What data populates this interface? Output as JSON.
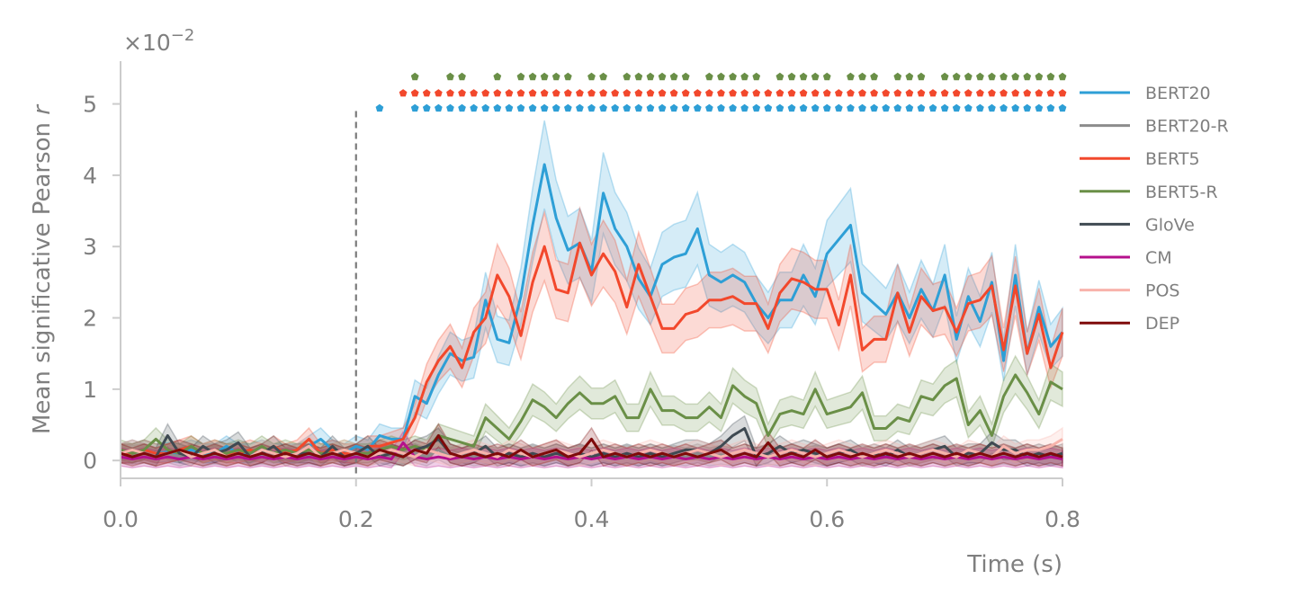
{
  "chart_data": {
    "type": "line",
    "xlabel": "Time (s)",
    "ylabel": "Mean significative Pearson",
    "ylabel_italic": "r",
    "multiplier_base": "×10",
    "multiplier_exp": "−2",
    "xlim": [
      0.0,
      0.8
    ],
    "ylim": [
      -0.25,
      5.6
    ],
    "x_ticks": [
      0.0,
      0.2,
      0.4,
      0.6,
      0.8
    ],
    "x_tick_labels": [
      "0.0",
      "0.2",
      "0.4",
      "0.6",
      "0.8"
    ],
    "y_ticks": [
      0,
      1,
      2,
      3,
      4,
      5
    ],
    "y_tick_labels": [
      "0",
      "1",
      "2",
      "3",
      "4",
      "5"
    ],
    "grid": false,
    "legend_position": "right",
    "vline": {
      "x": 0.2,
      "y_top": 4.9,
      "style": "dashed"
    },
    "x": [
      0.0,
      0.01,
      0.02,
      0.03,
      0.04,
      0.05,
      0.06,
      0.07,
      0.08,
      0.09,
      0.1,
      0.11,
      0.12,
      0.13,
      0.14,
      0.15,
      0.16,
      0.17,
      0.18,
      0.19,
      0.2,
      0.21,
      0.22,
      0.23,
      0.24,
      0.25,
      0.26,
      0.27,
      0.28,
      0.29,
      0.3,
      0.31,
      0.32,
      0.33,
      0.34,
      0.35,
      0.36,
      0.37,
      0.38,
      0.39,
      0.4,
      0.41,
      0.42,
      0.43,
      0.44,
      0.45,
      0.46,
      0.47,
      0.48,
      0.49,
      0.5,
      0.51,
      0.52,
      0.53,
      0.54,
      0.55,
      0.56,
      0.57,
      0.58,
      0.59,
      0.6,
      0.61,
      0.62,
      0.63,
      0.64,
      0.65,
      0.66,
      0.67,
      0.68,
      0.69,
      0.7,
      0.71,
      0.72,
      0.73,
      0.74,
      0.75,
      0.76,
      0.77,
      0.78,
      0.79,
      0.8
    ],
    "series": [
      {
        "name": "BERT20",
        "color": "#2e9fd6",
        "values": [
          0.1,
          0.1,
          0.15,
          0.1,
          0.12,
          0.1,
          0.15,
          0.1,
          0.1,
          0.2,
          0.1,
          0.1,
          0.15,
          0.1,
          0.1,
          0.1,
          0.2,
          0.3,
          0.15,
          0.1,
          0.2,
          0.15,
          0.35,
          0.3,
          0.3,
          0.9,
          0.8,
          1.2,
          1.5,
          1.4,
          1.45,
          2.25,
          1.7,
          1.65,
          2.3,
          3.3,
          4.15,
          3.4,
          2.95,
          3.05,
          2.65,
          3.75,
          3.25,
          3.0,
          2.55,
          2.3,
          2.75,
          2.85,
          2.9,
          3.25,
          2.6,
          2.5,
          2.6,
          2.5,
          2.2,
          2.0,
          2.25,
          2.25,
          2.6,
          2.3,
          2.9,
          3.1,
          3.3,
          2.35,
          2.2,
          2.05,
          2.35,
          2.0,
          2.4,
          2.1,
          2.6,
          1.7,
          2.3,
          1.95,
          2.5,
          1.4,
          2.6,
          1.5,
          2.15,
          1.6,
          1.8
        ]
      },
      {
        "name": "BERT20-R",
        "color": "#8c8c8c",
        "values": [
          0.1,
          0.08,
          0.1,
          0.05,
          0.1,
          0.05,
          0.1,
          0.05,
          0.08,
          0.05,
          0.1,
          0.05,
          0.08,
          0.05,
          0.1,
          0.05,
          0.08,
          0.05,
          0.1,
          0.05,
          0.08,
          0.05,
          0.1,
          0.05,
          0.08,
          0.1,
          0.05,
          0.15,
          0.05,
          0.1,
          0.05,
          0.08,
          0.05,
          0.1,
          0.05,
          0.08,
          0.05,
          0.1,
          0.05,
          0.08,
          0.05,
          0.1,
          0.05,
          0.08,
          0.05,
          0.1,
          0.05,
          0.08,
          0.05,
          0.1,
          0.05,
          0.08,
          0.05,
          0.1,
          0.05,
          0.08,
          0.05,
          0.1,
          0.05,
          0.08,
          0.05,
          0.1,
          0.05,
          0.08,
          0.05,
          0.1,
          0.05,
          0.08,
          0.05,
          0.1,
          0.05,
          0.08,
          0.05,
          0.1,
          0.05,
          0.08,
          0.05,
          0.1,
          0.05,
          0.08,
          0.05
        ]
      },
      {
        "name": "BERT5",
        "color": "#f2482c",
        "values": [
          0.1,
          0.1,
          0.15,
          0.1,
          0.1,
          0.15,
          0.2,
          0.1,
          0.15,
          0.1,
          0.1,
          0.15,
          0.1,
          0.2,
          0.1,
          0.15,
          0.3,
          0.1,
          0.15,
          0.1,
          0.1,
          0.2,
          0.2,
          0.25,
          0.3,
          0.6,
          1.1,
          1.4,
          1.6,
          1.3,
          1.8,
          2.0,
          2.6,
          2.3,
          1.75,
          2.5,
          3.0,
          2.4,
          2.35,
          3.05,
          2.6,
          2.9,
          2.65,
          2.15,
          2.75,
          2.3,
          1.85,
          1.85,
          2.05,
          2.1,
          2.25,
          2.25,
          2.3,
          2.2,
          2.2,
          1.85,
          2.35,
          2.55,
          2.5,
          2.4,
          2.4,
          1.9,
          2.6,
          1.55,
          1.7,
          1.7,
          2.35,
          1.8,
          2.3,
          2.1,
          2.15,
          1.8,
          2.2,
          2.25,
          2.45,
          1.55,
          2.45,
          1.5,
          2.05,
          1.3,
          1.8
        ]
      },
      {
        "name": "BERT5-R",
        "color": "#6a8f47",
        "values": [
          0.15,
          0.1,
          0.15,
          0.3,
          0.15,
          0.1,
          0.2,
          0.1,
          0.15,
          0.1,
          0.15,
          0.1,
          0.2,
          0.1,
          0.15,
          0.1,
          0.15,
          0.1,
          0.1,
          0.15,
          0.1,
          0.1,
          0.15,
          0.2,
          0.15,
          0.2,
          0.15,
          0.35,
          0.3,
          0.25,
          0.2,
          0.6,
          0.45,
          0.3,
          0.55,
          0.85,
          0.75,
          0.6,
          0.8,
          0.95,
          0.8,
          0.8,
          0.9,
          0.6,
          0.6,
          1.0,
          0.7,
          0.7,
          0.6,
          0.6,
          0.75,
          0.6,
          1.05,
          0.9,
          0.8,
          0.35,
          0.65,
          0.7,
          0.65,
          1.0,
          0.65,
          0.7,
          0.75,
          0.95,
          0.45,
          0.45,
          0.6,
          0.55,
          0.9,
          0.85,
          1.05,
          1.15,
          0.5,
          0.7,
          0.35,
          0.9,
          1.2,
          0.95,
          0.65,
          1.1,
          1.0
        ]
      },
      {
        "name": "GloVe",
        "color": "#3f4a52",
        "values": [
          0.1,
          0.15,
          0.1,
          0.05,
          0.35,
          0.1,
          0.05,
          0.2,
          0.1,
          0.15,
          0.25,
          0.05,
          0.1,
          0.2,
          0.05,
          0.1,
          0.1,
          0.05,
          0.2,
          0.05,
          0.1,
          0.2,
          0.05,
          0.1,
          0.05,
          0.15,
          0.2,
          0.3,
          0.1,
          0.05,
          0.1,
          0.2,
          0.05,
          0.1,
          0.05,
          0.1,
          0.05,
          0.1,
          0.05,
          0.1,
          0.05,
          0.1,
          0.05,
          0.1,
          0.05,
          0.1,
          0.05,
          0.1,
          0.15,
          0.15,
          0.1,
          0.2,
          0.35,
          0.45,
          0.05,
          0.1,
          0.2,
          0.1,
          0.15,
          0.1,
          0.05,
          0.1,
          0.15,
          0.05,
          0.1,
          0.05,
          0.15,
          0.05,
          0.1,
          0.15,
          0.2,
          0.05,
          0.1,
          0.1,
          0.25,
          0.15,
          0.15,
          0.05,
          0.1,
          0.05,
          0.1
        ]
      },
      {
        "name": "CM",
        "color": "#b5108c",
        "values": [
          0.05,
          0.02,
          0.05,
          0.02,
          0.05,
          0.02,
          0.05,
          0.02,
          0.05,
          0.02,
          0.05,
          0.02,
          0.05,
          0.02,
          0.05,
          0.02,
          0.05,
          0.02,
          0.05,
          0.02,
          0.05,
          0.02,
          0.05,
          0.02,
          0.25,
          0.05,
          0.02,
          0.05,
          0.02,
          0.05,
          0.02,
          0.05,
          0.02,
          0.05,
          0.02,
          0.05,
          0.02,
          0.05,
          0.02,
          0.05,
          0.02,
          0.05,
          0.02,
          0.05,
          0.02,
          0.05,
          0.02,
          0.05,
          0.02,
          0.05,
          0.02,
          0.05,
          0.02,
          0.05,
          0.02,
          0.05,
          0.02,
          0.05,
          0.02,
          0.05,
          0.02,
          0.05,
          0.02,
          0.05,
          0.02,
          0.05,
          0.02,
          0.05,
          0.02,
          0.05,
          0.02,
          0.05,
          0.02,
          0.05,
          0.02,
          0.05,
          0.02,
          0.05,
          0.02,
          0.05,
          0.02
        ]
      },
      {
        "name": "POS",
        "color": "#f8b3ab",
        "values": [
          0.1,
          0.15,
          0.1,
          0.05,
          0.1,
          0.15,
          0.05,
          0.1,
          0.15,
          0.05,
          0.1,
          0.05,
          0.15,
          0.1,
          0.05,
          0.1,
          0.2,
          0.05,
          0.1,
          0.15,
          0.1,
          0.05,
          0.1,
          0.15,
          0.1,
          0.05,
          0.15,
          0.1,
          0.05,
          0.1,
          0.15,
          0.1,
          0.05,
          0.15,
          0.1,
          0.05,
          0.1,
          0.15,
          0.1,
          0.05,
          0.1,
          0.15,
          0.1,
          0.05,
          0.1,
          0.15,
          0.1,
          0.05,
          0.1,
          0.15,
          0.1,
          0.05,
          0.1,
          0.15,
          0.1,
          0.05,
          0.1,
          0.15,
          0.1,
          0.05,
          0.1,
          0.15,
          0.1,
          0.05,
          0.1,
          0.15,
          0.1,
          0.05,
          0.1,
          0.15,
          0.1,
          0.05,
          0.15,
          0.1,
          0.05,
          0.2,
          0.1,
          0.15,
          0.15,
          0.2,
          0.3
        ]
      },
      {
        "name": "DEP",
        "color": "#7f0a0a",
        "values": [
          0.1,
          0.05,
          0.1,
          0.05,
          0.1,
          0.15,
          0.1,
          0.05,
          0.1,
          0.05,
          0.1,
          0.05,
          0.1,
          0.05,
          0.1,
          0.05,
          0.1,
          0.05,
          0.1,
          0.05,
          0.1,
          0.05,
          0.15,
          0.1,
          0.05,
          0.15,
          0.1,
          0.35,
          0.1,
          0.05,
          0.1,
          0.05,
          0.1,
          0.05,
          0.15,
          0.05,
          0.1,
          0.15,
          0.05,
          0.1,
          0.3,
          0.05,
          0.1,
          0.05,
          0.1,
          0.05,
          0.1,
          0.05,
          0.1,
          0.05,
          0.1,
          0.15,
          0.05,
          0.1,
          0.05,
          0.25,
          0.05,
          0.1,
          0.05,
          0.15,
          0.05,
          0.1,
          0.05,
          0.1,
          0.05,
          0.1,
          0.05,
          0.1,
          0.05,
          0.1,
          0.05,
          0.1,
          0.05,
          0.1,
          0.05,
          0.1,
          0.05,
          0.1,
          0.05,
          0.1,
          0.05
        ]
      }
    ],
    "significance_markers": [
      {
        "series": "BERT5-R",
        "y": 5.38,
        "x": [
          0.25,
          0.28,
          0.29,
          0.32,
          0.34,
          0.35,
          0.36,
          0.37,
          0.38,
          0.4,
          0.41,
          0.43,
          0.44,
          0.45,
          0.46,
          0.47,
          0.48,
          0.5,
          0.51,
          0.52,
          0.53,
          0.54,
          0.56,
          0.57,
          0.58,
          0.59,
          0.6,
          0.62,
          0.63,
          0.64,
          0.66,
          0.67,
          0.68,
          0.7,
          0.71,
          0.72,
          0.73,
          0.74,
          0.75,
          0.76,
          0.77,
          0.78,
          0.79,
          0.8
        ]
      },
      {
        "series": "BERT5",
        "y": 5.15,
        "x": [
          0.24,
          0.25,
          0.26,
          0.27,
          0.28,
          0.29,
          0.3,
          0.31,
          0.32,
          0.33,
          0.34,
          0.35,
          0.36,
          0.37,
          0.38,
          0.39,
          0.4,
          0.41,
          0.42,
          0.43,
          0.44,
          0.45,
          0.46,
          0.47,
          0.48,
          0.49,
          0.5,
          0.51,
          0.52,
          0.53,
          0.54,
          0.55,
          0.56,
          0.57,
          0.58,
          0.59,
          0.6,
          0.61,
          0.62,
          0.63,
          0.64,
          0.65,
          0.66,
          0.67,
          0.68,
          0.69,
          0.7,
          0.71,
          0.72,
          0.73,
          0.74,
          0.75,
          0.76,
          0.77,
          0.78,
          0.79,
          0.8
        ]
      },
      {
        "series": "BERT20",
        "y": 4.94,
        "x": [
          0.22,
          0.25,
          0.26,
          0.27,
          0.28,
          0.29,
          0.3,
          0.31,
          0.32,
          0.33,
          0.34,
          0.35,
          0.36,
          0.37,
          0.38,
          0.39,
          0.4,
          0.41,
          0.42,
          0.43,
          0.44,
          0.45,
          0.46,
          0.47,
          0.48,
          0.49,
          0.5,
          0.51,
          0.52,
          0.53,
          0.54,
          0.55,
          0.56,
          0.57,
          0.58,
          0.59,
          0.6,
          0.61,
          0.62,
          0.63,
          0.64,
          0.65,
          0.66,
          0.67,
          0.68,
          0.69,
          0.7,
          0.71,
          0.72,
          0.73,
          0.74,
          0.75,
          0.76,
          0.77,
          0.78,
          0.79,
          0.8
        ]
      }
    ]
  }
}
